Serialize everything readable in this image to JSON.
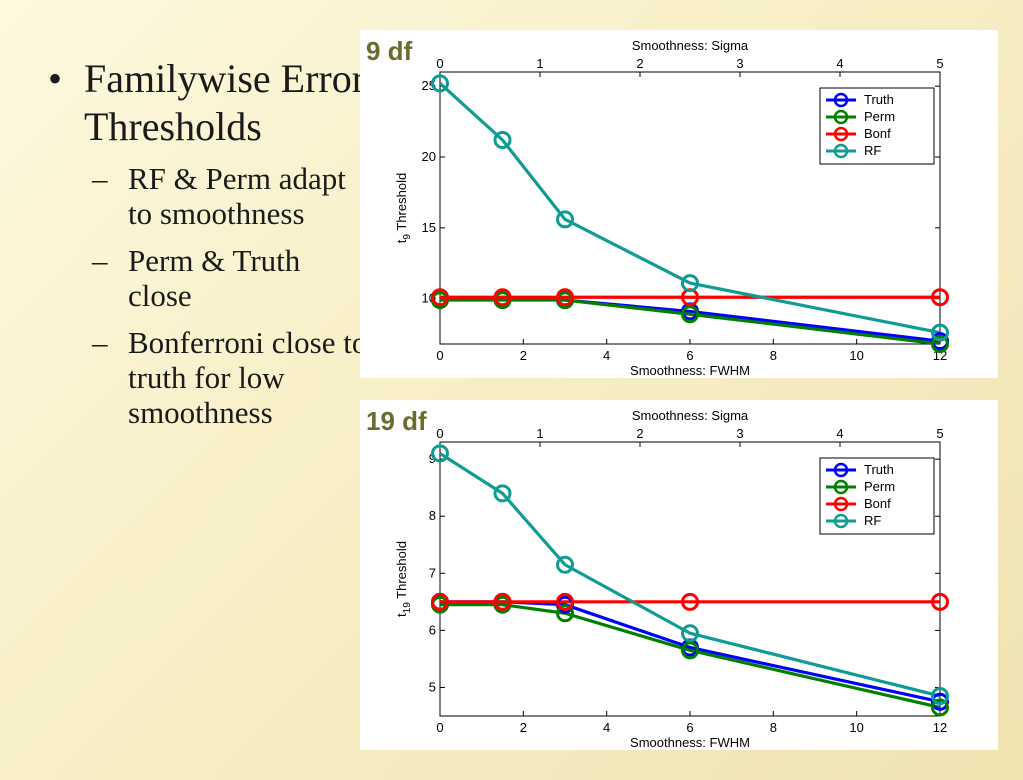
{
  "bullets": {
    "main": "Familywise Error Thresholds",
    "items": [
      "RF & Perm adapt to smoothness",
      "Perm & Truth close",
      "Bonferroni close to truth for low smoothness"
    ]
  },
  "colors": {
    "Truth": "#0000ff",
    "Perm": "#008000",
    "Bonf": "#ff0000",
    "RF": "#109c92"
  },
  "chart_data": [
    {
      "type": "line",
      "df_label": "9 df",
      "xlabel": "Smoothness:  FWHM",
      "x2label": "Smoothness:  Sigma",
      "ylabel": "Threshold",
      "ylabel_t": "t",
      "ylabel_sub": "9",
      "xlim": [
        0,
        12
      ],
      "ylim": [
        6.8,
        26
      ],
      "xticks": [
        0,
        2,
        4,
        6,
        8,
        10,
        12
      ],
      "x2ticks": [
        0,
        1,
        2,
        3,
        4,
        5
      ],
      "yticks": [
        10,
        15,
        20,
        25
      ],
      "legend_position": "top-right",
      "x": [
        0,
        1.5,
        3,
        6,
        12
      ],
      "series": [
        {
          "name": "Truth",
          "values": [
            10.0,
            10.0,
            9.9,
            9.1,
            7.0
          ]
        },
        {
          "name": "Perm",
          "values": [
            9.9,
            9.9,
            9.9,
            8.9,
            6.8
          ]
        },
        {
          "name": "Bonf",
          "values": [
            10.1,
            10.1,
            10.1,
            10.1,
            10.1
          ]
        },
        {
          "name": "RF",
          "values": [
            25.2,
            21.2,
            15.6,
            11.1,
            7.6
          ]
        }
      ]
    },
    {
      "type": "line",
      "df_label": "19 df",
      "xlabel": "Smoothness:  FWHM",
      "x2label": "Smoothness:  Sigma",
      "ylabel": "Threshold",
      "ylabel_t": "t",
      "ylabel_sub": "19",
      "xlim": [
        0,
        12
      ],
      "ylim": [
        4.5,
        9.3
      ],
      "xticks": [
        0,
        2,
        4,
        6,
        8,
        10,
        12
      ],
      "x2ticks": [
        0,
        1,
        2,
        3,
        4,
        5
      ],
      "yticks": [
        5,
        6,
        7,
        8,
        9
      ],
      "legend_position": "top-right",
      "x": [
        0,
        1.5,
        3,
        6,
        12
      ],
      "series": [
        {
          "name": "Truth",
          "values": [
            6.5,
            6.5,
            6.45,
            5.7,
            4.75
          ]
        },
        {
          "name": "Perm",
          "values": [
            6.45,
            6.45,
            6.3,
            5.65,
            4.65
          ]
        },
        {
          "name": "Bonf",
          "values": [
            6.5,
            6.5,
            6.5,
            6.5,
            6.5
          ]
        },
        {
          "name": "RF",
          "values": [
            9.1,
            8.4,
            7.15,
            5.95,
            4.85
          ]
        }
      ]
    }
  ]
}
